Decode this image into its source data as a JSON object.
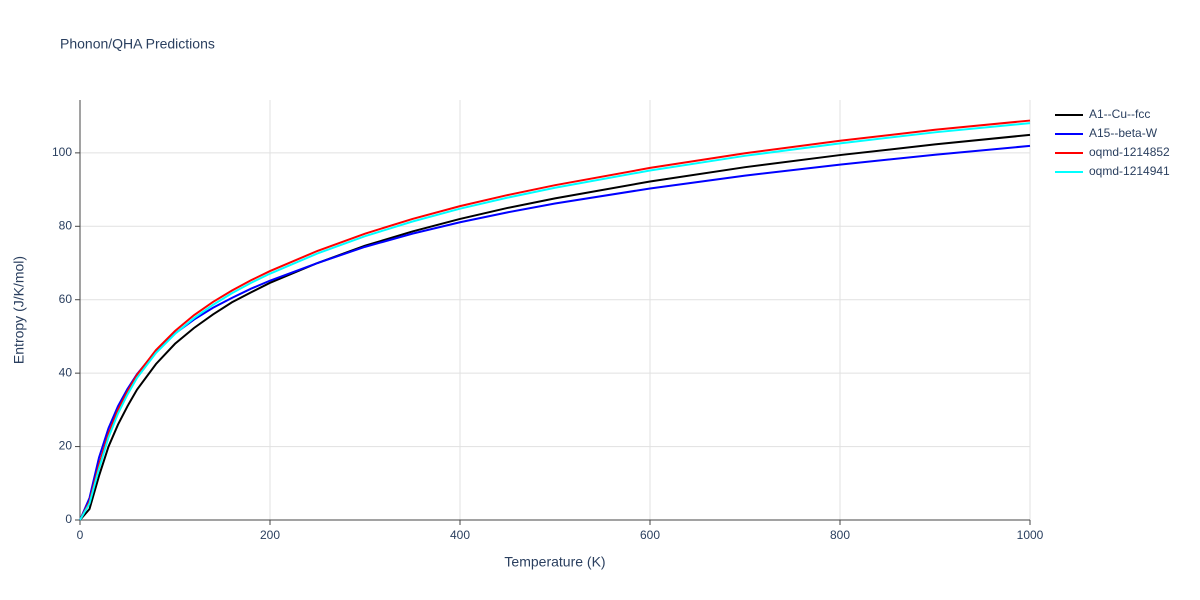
{
  "chart_data": {
    "type": "line",
    "title": "Phonon/QHA Predictions",
    "x_label": "Temperature (K)",
    "y_label": "Entropy (J/K/mol)",
    "x": [
      0,
      10,
      20,
      30,
      40,
      50,
      60,
      80,
      100,
      120,
      140,
      160,
      180,
      200,
      250,
      300,
      350,
      400,
      450,
      500,
      600,
      700,
      800,
      900,
      1000
    ],
    "series": [
      {
        "name": "A1--Cu--fcc",
        "color": "#000000",
        "values": [
          0,
          3,
          12,
          20,
          26,
          31,
          35.5,
          42.5,
          48,
          52.3,
          56,
          59.3,
          62,
          64.6,
          70,
          74.7,
          78.6,
          82,
          85,
          87.6,
          92.2,
          96.1,
          99.4,
          102.3,
          104.9
        ]
      },
      {
        "name": "A15--beta-W",
        "color": "#0000ff",
        "values": [
          0,
          6,
          17,
          25,
          31,
          35.7,
          39.7,
          46,
          50.8,
          54.6,
          57.8,
          60.5,
          63,
          65.2,
          70,
          74.4,
          78,
          81.1,
          83.8,
          86.2,
          90.3,
          93.8,
          96.8,
          99.5,
          101.9
        ]
      },
      {
        "name": "oqmd-1214852",
        "color": "#ff0000",
        "values": [
          0,
          5,
          15,
          23.5,
          30,
          35,
          39.5,
          46.3,
          51.5,
          55.8,
          59.4,
          62.5,
          65.3,
          67.8,
          73.3,
          78,
          82,
          85.5,
          88.5,
          91.2,
          95.9,
          99.9,
          103.3,
          106.3,
          108.8
        ]
      },
      {
        "name": "oqmd-1214941",
        "color": "#00ffff",
        "values": [
          0,
          4.5,
          14,
          22.5,
          29,
          34.2,
          38.7,
          45.5,
          50.7,
          55,
          58.6,
          61.8,
          64.6,
          67.1,
          72.6,
          77.3,
          81.3,
          84.8,
          87.8,
          90.5,
          95.2,
          99.2,
          102.6,
          105.6,
          108.1
        ]
      }
    ],
    "xlim": [
      0,
      1000
    ],
    "ylim": [
      0,
      114.4
    ],
    "xticks": [
      0,
      200,
      400,
      600,
      800,
      1000
    ],
    "yticks": [
      0,
      20,
      40,
      60,
      80,
      100
    ],
    "grid": true,
    "legend": "top-right"
  }
}
